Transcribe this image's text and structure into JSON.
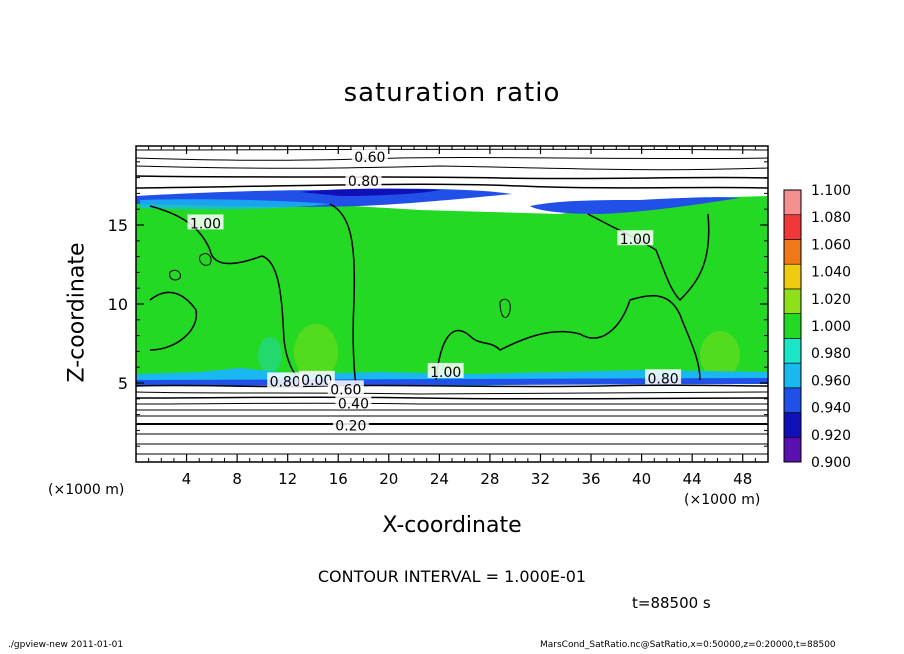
{
  "chart_data": {
    "type": "heatmap",
    "title": "saturation ratio",
    "xlabel": "X-coordinate",
    "ylabel": "Z-coordinate",
    "x_unit": "(×1000 m)",
    "y_unit": "(×1000 m)",
    "xlim": [
      0,
      50
    ],
    "ylim": [
      0,
      20
    ],
    "x_ticks": [
      4,
      8,
      12,
      16,
      20,
      24,
      28,
      32,
      36,
      40,
      44,
      48
    ],
    "y_ticks": [
      5,
      10,
      15
    ],
    "colorbar": {
      "levels": [
        0.9,
        0.92,
        0.94,
        0.96,
        0.98,
        1.0,
        1.02,
        1.04,
        1.06,
        1.08,
        1.1
      ],
      "labels": [
        "0.900",
        "0.920",
        "0.940",
        "0.960",
        "0.980",
        "1.000",
        "1.020",
        "1.040",
        "1.060",
        "1.080",
        "1.100"
      ],
      "colors": [
        "#5a10b0",
        "#1010b8",
        "#2050e8",
        "#19b8f0",
        "#19e6c6",
        "#23d923",
        "#8ee01a",
        "#f0cc10",
        "#f07818",
        "#f03838",
        "#f49090"
      ]
    },
    "contour_labels": [
      {
        "text": "0.60",
        "x": 18.5,
        "z": 19.3
      },
      {
        "text": "0.80",
        "x": 18.0,
        "z": 17.8
      },
      {
        "text": "1.00",
        "x": 5.5,
        "z": 15.1
      },
      {
        "text": "1.00",
        "x": 39.5,
        "z": 14.1
      },
      {
        "text": "1.00",
        "x": 24.5,
        "z": 5.7
      },
      {
        "text": "0.80",
        "x": 11.8,
        "z": 5.1
      },
      {
        "text": "0.00",
        "x": 14.3,
        "z": 5.2
      },
      {
        "text": "0.60",
        "x": 16.6,
        "z": 4.6
      },
      {
        "text": "0.40",
        "x": 17.2,
        "z": 3.7
      },
      {
        "text": "0.20",
        "x": 17.0,
        "z": 2.3
      },
      {
        "text": "0.80",
        "x": 41.7,
        "z": 5.3
      }
    ],
    "contour_interval_text": "CONTOUR INTERVAL = 1.000E-01",
    "time_text": "t=88500 s"
  },
  "footer": {
    "left": "./gpview-new   2011-01-01",
    "right": "MarsCond_SatRatio.nc@SatRatio,x=0:50000,z=0:20000,t=88500"
  }
}
